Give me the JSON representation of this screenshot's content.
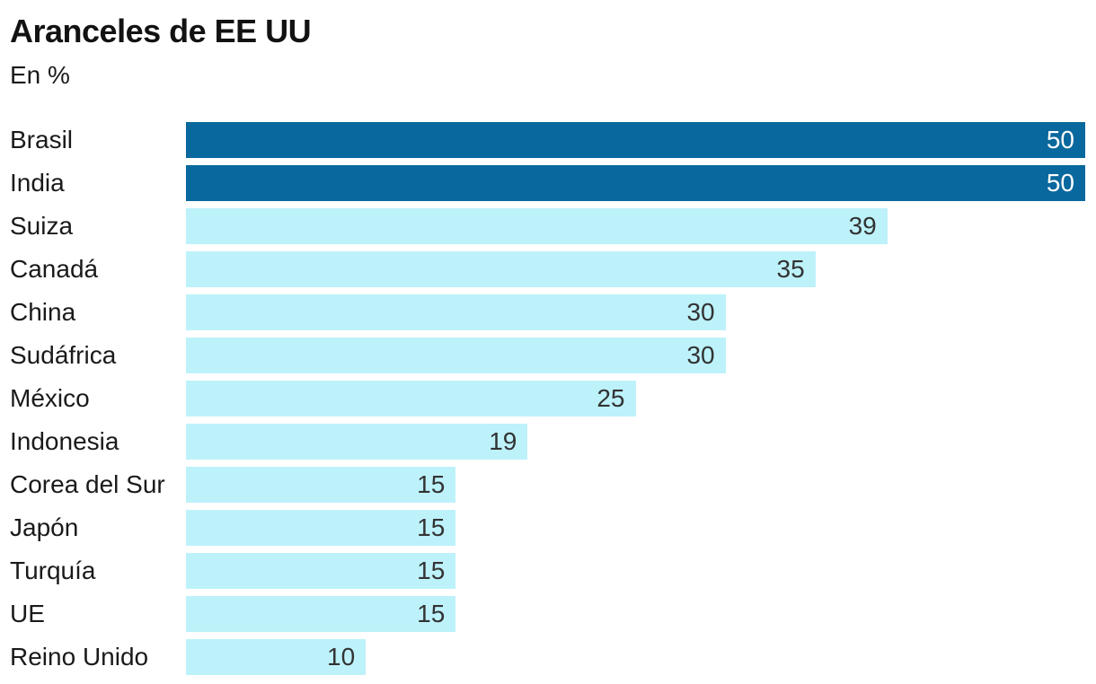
{
  "header": {
    "title": "Aranceles de EE UU",
    "subtitle": "En %"
  },
  "chart_data": {
    "type": "bar",
    "orientation": "horizontal",
    "title": "Aranceles de EE UU",
    "subtitle": "En %",
    "xlabel": "",
    "ylabel": "",
    "xlim": [
      0,
      50
    ],
    "unit": "%",
    "grid": false,
    "legend": false,
    "value_label_position": "inside-end",
    "categories": [
      "Brasil",
      "India",
      "Suiza",
      "Canadá",
      "China",
      "Sudáfrica",
      "México",
      "Indonesia",
      "Corea del Sur",
      "Japón",
      "Turquía",
      "UE",
      "Reino Unido"
    ],
    "values": [
      50,
      50,
      39,
      35,
      30,
      30,
      25,
      19,
      15,
      15,
      15,
      15,
      10
    ],
    "highlighted_categories": [
      "Brasil",
      "India"
    ],
    "colors": {
      "bar_highlight": "#09689d",
      "bar_base": "#bdf2fb",
      "value_on_highlight": "#ffffff",
      "value_on_base": "#333333",
      "label_text": "#1a1a1a",
      "title_text": "#121212"
    }
  }
}
